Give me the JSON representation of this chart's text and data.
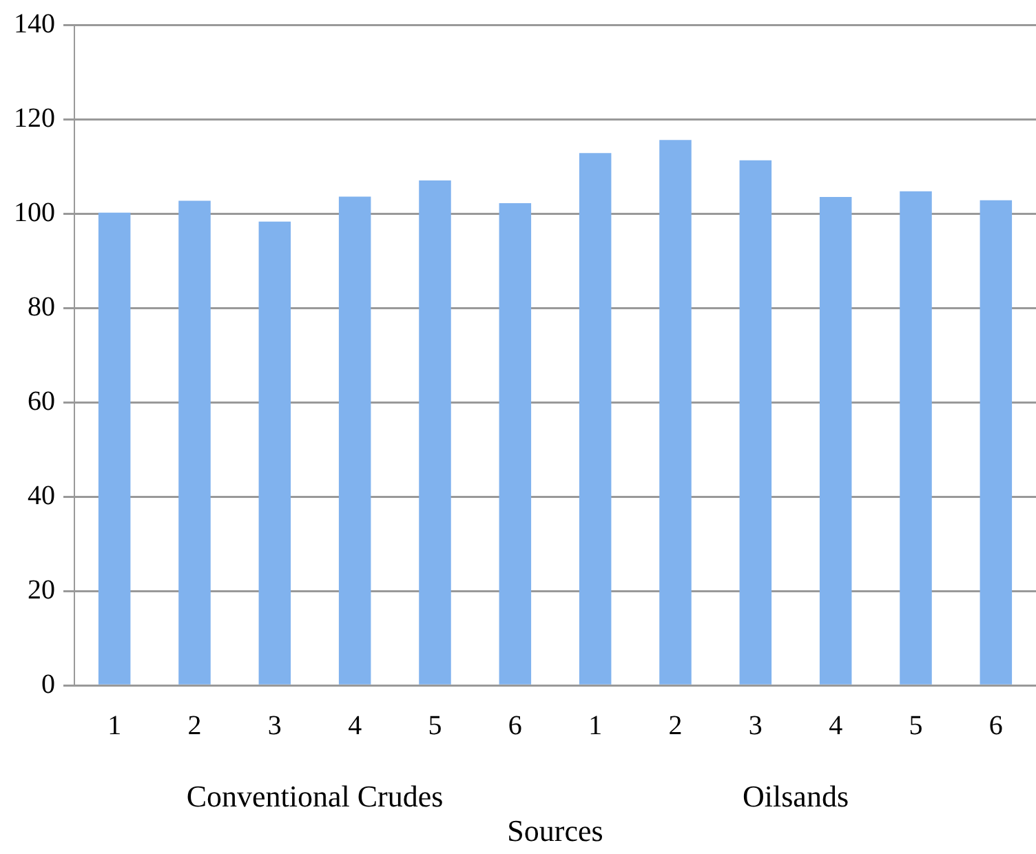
{
  "chart_data": {
    "type": "bar",
    "xlabel": "Sources",
    "categories": [
      "1",
      "2",
      "3",
      "4",
      "5",
      "6",
      "1",
      "2",
      "3",
      "4",
      "5",
      "6"
    ],
    "values": [
      100.2,
      102.7,
      98.3,
      103.6,
      107,
      102.2,
      112.8,
      115.6,
      111.3,
      103.5,
      104.7,
      102.8
    ],
    "color": "#80b2ee",
    "ylim": [
      0,
      140
    ],
    "yticks": [
      0,
      20,
      40,
      60,
      80,
      100,
      120,
      140
    ],
    "grid": "y",
    "legend": false,
    "annotations": [
      "Conventional Crudes",
      "Oilsands"
    ]
  }
}
